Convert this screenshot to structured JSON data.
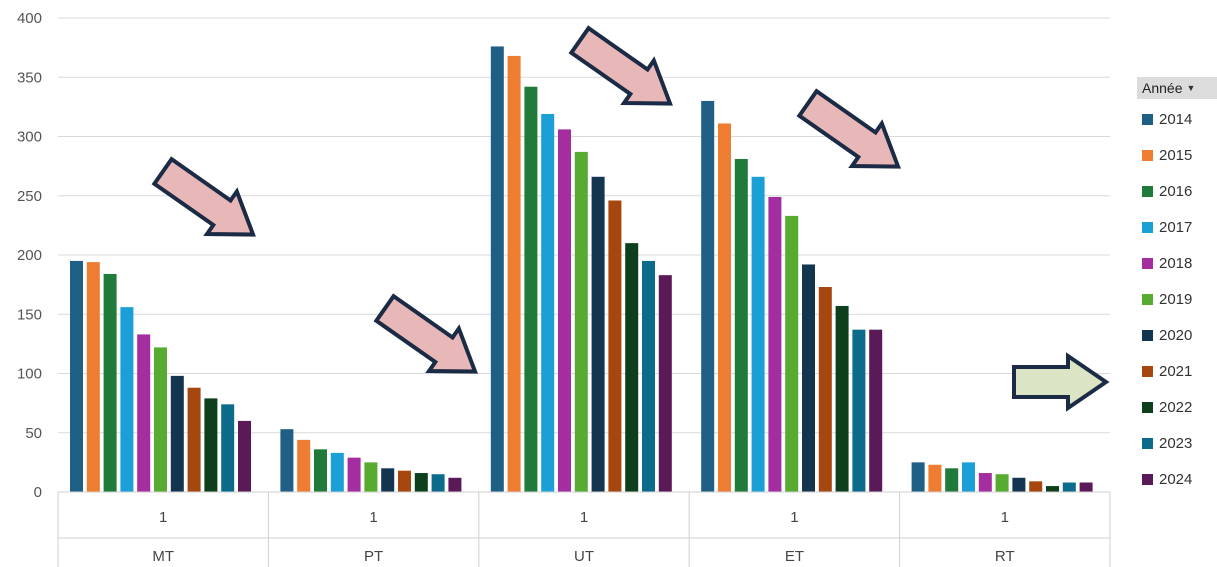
{
  "chart_data": {
    "type": "bar",
    "title": "",
    "xlabel": "",
    "ylabel": "",
    "ylim": [
      0,
      400
    ],
    "yticks": [
      0,
      50,
      100,
      150,
      200,
      250,
      300,
      350,
      400
    ],
    "grid": true,
    "legend_position": "right",
    "legend_title": "Année",
    "x_sub_labels": [
      "1",
      "1",
      "1",
      "1",
      "1"
    ],
    "categories": [
      "MT",
      "PT",
      "UT",
      "ET",
      "RT"
    ],
    "series": [
      {
        "name": "2014",
        "color": "#1f5f86",
        "values": [
          195,
          53,
          376,
          330,
          25
        ]
      },
      {
        "name": "2015",
        "color": "#ef7d31",
        "values": [
          194,
          44,
          368,
          311,
          23
        ]
      },
      {
        "name": "2016",
        "color": "#207a3a",
        "values": [
          184,
          36,
          342,
          281,
          20
        ]
      },
      {
        "name": "2017",
        "color": "#1a9fd6",
        "values": [
          156,
          33,
          319,
          266,
          25
        ]
      },
      {
        "name": "2018",
        "color": "#a42ea0",
        "values": [
          133,
          29,
          306,
          249,
          16
        ]
      },
      {
        "name": "2019",
        "color": "#56ab30",
        "values": [
          122,
          25,
          287,
          233,
          15
        ]
      },
      {
        "name": "2020",
        "color": "#14354f",
        "values": [
          98,
          20,
          266,
          192,
          12
        ]
      },
      {
        "name": "2021",
        "color": "#a6470f",
        "values": [
          88,
          18,
          246,
          173,
          9
        ]
      },
      {
        "name": "2022",
        "color": "#0e3f1d",
        "values": [
          79,
          16,
          210,
          157,
          5
        ]
      },
      {
        "name": "2023",
        "color": "#0c6b8b",
        "values": [
          74,
          15,
          195,
          137,
          8
        ]
      },
      {
        "name": "2024",
        "color": "#5a1a58",
        "values": [
          60,
          12,
          183,
          137,
          8
        ]
      }
    ],
    "annotations": [
      {
        "shape": "arrow-down-right",
        "color": "#e8b8b8"
      },
      {
        "shape": "arrow-down-right",
        "color": "#e8b8b8"
      },
      {
        "shape": "arrow-down-right",
        "color": "#e8b8b8"
      },
      {
        "shape": "arrow-down-right",
        "color": "#e8b8b8"
      },
      {
        "shape": "arrow-right",
        "color": "#dbe5c5"
      }
    ]
  }
}
